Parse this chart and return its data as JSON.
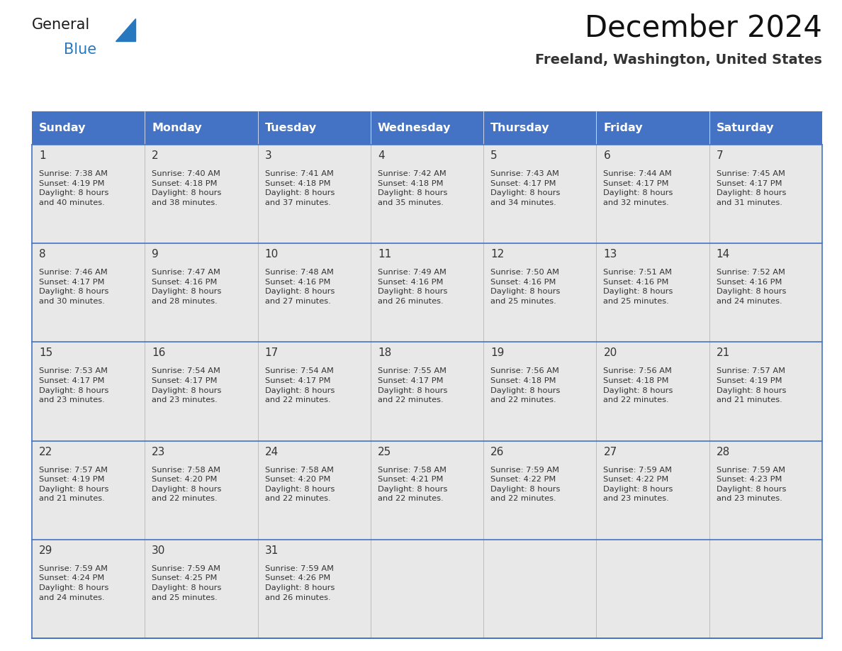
{
  "title": "December 2024",
  "subtitle": "Freeland, Washington, United States",
  "header_color": "#4472C4",
  "header_text_color": "#FFFFFF",
  "day_names": [
    "Sunday",
    "Monday",
    "Tuesday",
    "Wednesday",
    "Thursday",
    "Friday",
    "Saturday"
  ],
  "cell_bg_color": "#E8E8E8",
  "border_color": "#4472C4",
  "text_color": "#333333",
  "days": [
    {
      "day": 1,
      "col": 0,
      "row": 0,
      "sunrise": "7:38 AM",
      "sunset": "4:19 PM",
      "daylight": "8 hours\nand 40 minutes."
    },
    {
      "day": 2,
      "col": 1,
      "row": 0,
      "sunrise": "7:40 AM",
      "sunset": "4:18 PM",
      "daylight": "8 hours\nand 38 minutes."
    },
    {
      "day": 3,
      "col": 2,
      "row": 0,
      "sunrise": "7:41 AM",
      "sunset": "4:18 PM",
      "daylight": "8 hours\nand 37 minutes."
    },
    {
      "day": 4,
      "col": 3,
      "row": 0,
      "sunrise": "7:42 AM",
      "sunset": "4:18 PM",
      "daylight": "8 hours\nand 35 minutes."
    },
    {
      "day": 5,
      "col": 4,
      "row": 0,
      "sunrise": "7:43 AM",
      "sunset": "4:17 PM",
      "daylight": "8 hours\nand 34 minutes."
    },
    {
      "day": 6,
      "col": 5,
      "row": 0,
      "sunrise": "7:44 AM",
      "sunset": "4:17 PM",
      "daylight": "8 hours\nand 32 minutes."
    },
    {
      "day": 7,
      "col": 6,
      "row": 0,
      "sunrise": "7:45 AM",
      "sunset": "4:17 PM",
      "daylight": "8 hours\nand 31 minutes."
    },
    {
      "day": 8,
      "col": 0,
      "row": 1,
      "sunrise": "7:46 AM",
      "sunset": "4:17 PM",
      "daylight": "8 hours\nand 30 minutes."
    },
    {
      "day": 9,
      "col": 1,
      "row": 1,
      "sunrise": "7:47 AM",
      "sunset": "4:16 PM",
      "daylight": "8 hours\nand 28 minutes."
    },
    {
      "day": 10,
      "col": 2,
      "row": 1,
      "sunrise": "7:48 AM",
      "sunset": "4:16 PM",
      "daylight": "8 hours\nand 27 minutes."
    },
    {
      "day": 11,
      "col": 3,
      "row": 1,
      "sunrise": "7:49 AM",
      "sunset": "4:16 PM",
      "daylight": "8 hours\nand 26 minutes."
    },
    {
      "day": 12,
      "col": 4,
      "row": 1,
      "sunrise": "7:50 AM",
      "sunset": "4:16 PM",
      "daylight": "8 hours\nand 25 minutes."
    },
    {
      "day": 13,
      "col": 5,
      "row": 1,
      "sunrise": "7:51 AM",
      "sunset": "4:16 PM",
      "daylight": "8 hours\nand 25 minutes."
    },
    {
      "day": 14,
      "col": 6,
      "row": 1,
      "sunrise": "7:52 AM",
      "sunset": "4:16 PM",
      "daylight": "8 hours\nand 24 minutes."
    },
    {
      "day": 15,
      "col": 0,
      "row": 2,
      "sunrise": "7:53 AM",
      "sunset": "4:17 PM",
      "daylight": "8 hours\nand 23 minutes."
    },
    {
      "day": 16,
      "col": 1,
      "row": 2,
      "sunrise": "7:54 AM",
      "sunset": "4:17 PM",
      "daylight": "8 hours\nand 23 minutes."
    },
    {
      "day": 17,
      "col": 2,
      "row": 2,
      "sunrise": "7:54 AM",
      "sunset": "4:17 PM",
      "daylight": "8 hours\nand 22 minutes."
    },
    {
      "day": 18,
      "col": 3,
      "row": 2,
      "sunrise": "7:55 AM",
      "sunset": "4:17 PM",
      "daylight": "8 hours\nand 22 minutes."
    },
    {
      "day": 19,
      "col": 4,
      "row": 2,
      "sunrise": "7:56 AM",
      "sunset": "4:18 PM",
      "daylight": "8 hours\nand 22 minutes."
    },
    {
      "day": 20,
      "col": 5,
      "row": 2,
      "sunrise": "7:56 AM",
      "sunset": "4:18 PM",
      "daylight": "8 hours\nand 22 minutes."
    },
    {
      "day": 21,
      "col": 6,
      "row": 2,
      "sunrise": "7:57 AM",
      "sunset": "4:19 PM",
      "daylight": "8 hours\nand 21 minutes."
    },
    {
      "day": 22,
      "col": 0,
      "row": 3,
      "sunrise": "7:57 AM",
      "sunset": "4:19 PM",
      "daylight": "8 hours\nand 21 minutes."
    },
    {
      "day": 23,
      "col": 1,
      "row": 3,
      "sunrise": "7:58 AM",
      "sunset": "4:20 PM",
      "daylight": "8 hours\nand 22 minutes."
    },
    {
      "day": 24,
      "col": 2,
      "row": 3,
      "sunrise": "7:58 AM",
      "sunset": "4:20 PM",
      "daylight": "8 hours\nand 22 minutes."
    },
    {
      "day": 25,
      "col": 3,
      "row": 3,
      "sunrise": "7:58 AM",
      "sunset": "4:21 PM",
      "daylight": "8 hours\nand 22 minutes."
    },
    {
      "day": 26,
      "col": 4,
      "row": 3,
      "sunrise": "7:59 AM",
      "sunset": "4:22 PM",
      "daylight": "8 hours\nand 22 minutes."
    },
    {
      "day": 27,
      "col": 5,
      "row": 3,
      "sunrise": "7:59 AM",
      "sunset": "4:22 PM",
      "daylight": "8 hours\nand 23 minutes."
    },
    {
      "day": 28,
      "col": 6,
      "row": 3,
      "sunrise": "7:59 AM",
      "sunset": "4:23 PM",
      "daylight": "8 hours\nand 23 minutes."
    },
    {
      "day": 29,
      "col": 0,
      "row": 4,
      "sunrise": "7:59 AM",
      "sunset": "4:24 PM",
      "daylight": "8 hours\nand 24 minutes."
    },
    {
      "day": 30,
      "col": 1,
      "row": 4,
      "sunrise": "7:59 AM",
      "sunset": "4:25 PM",
      "daylight": "8 hours\nand 25 minutes."
    },
    {
      "day": 31,
      "col": 2,
      "row": 4,
      "sunrise": "7:59 AM",
      "sunset": "4:26 PM",
      "daylight": "8 hours\nand 26 minutes."
    }
  ],
  "num_rows": 5,
  "num_cols": 7,
  "logo_general_color": "#1a1a1a",
  "logo_blue_color": "#2878C0",
  "fig_width": 11.88,
  "fig_height": 9.18,
  "dpi": 100
}
